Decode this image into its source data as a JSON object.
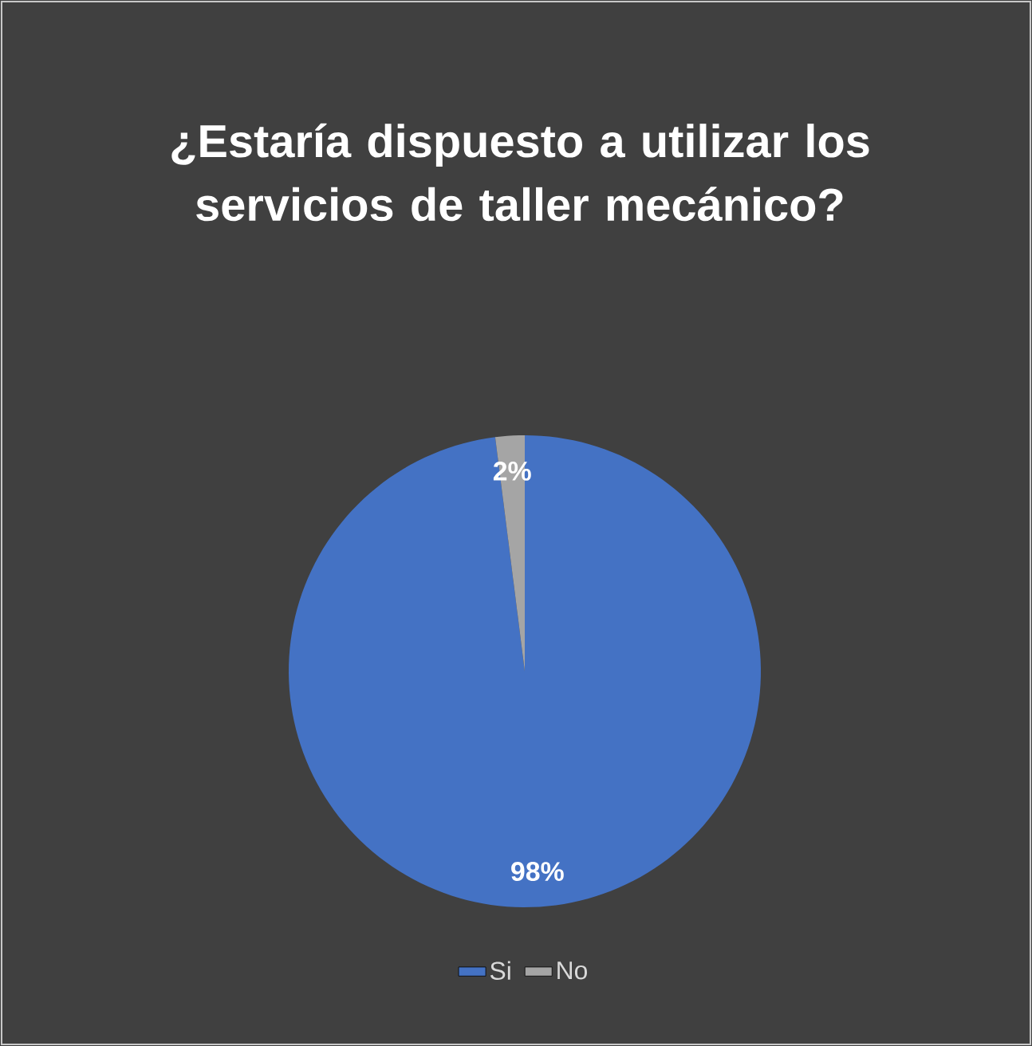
{
  "chart_data": {
    "type": "pie",
    "title": "¿Estaría dispuesto a utilizar los servicios de taller mecánico?",
    "categories": [
      "Si",
      "No"
    ],
    "values": [
      98,
      2
    ],
    "colors": [
      "#4472c4",
      "#a5a5a5"
    ],
    "value_labels": [
      "98%",
      "2%"
    ],
    "legend": "bottom"
  }
}
